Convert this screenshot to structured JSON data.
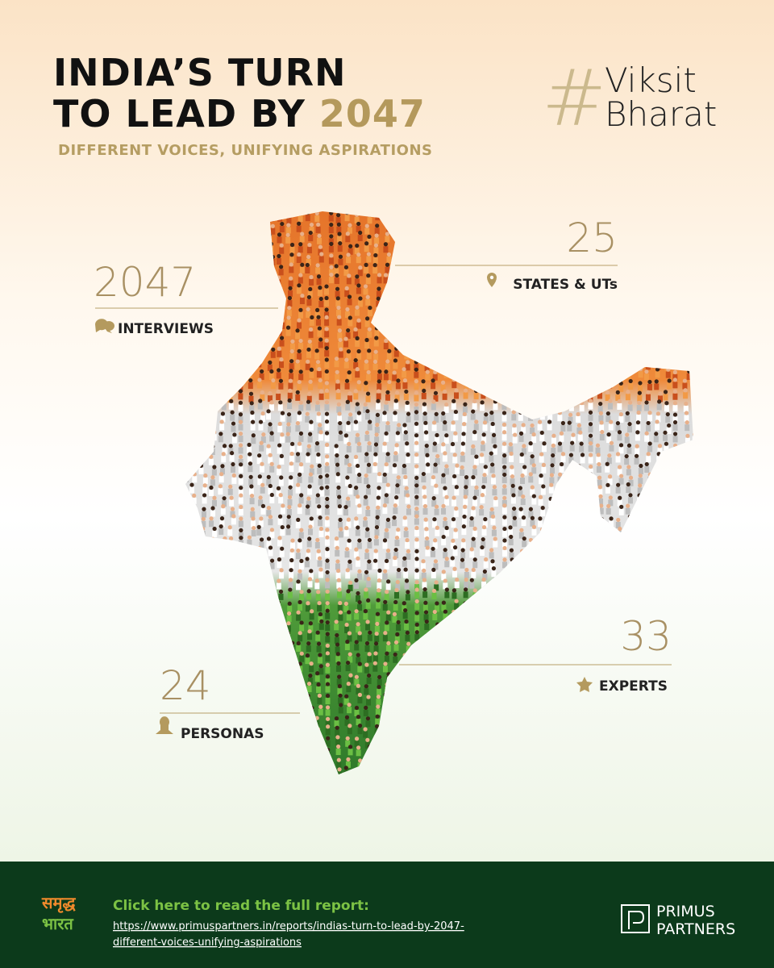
{
  "header": {
    "title_lines": [
      "INDIA’S TURN",
      "TO LEAD BY"
    ],
    "title_year": "2047",
    "subtitle": "DIFFERENT VOICES, UNIFYING ASPIRATIONS",
    "hashtag": "#",
    "tag_lines": [
      "Viksit",
      "Bharat"
    ]
  },
  "stats": [
    {
      "value": 2047,
      "label": "INTERVIEWS"
    },
    {
      "value": 25,
      "label": "STATES & UTs"
    },
    {
      "value": 33,
      "label": "EXPERTS"
    },
    {
      "value": 24,
      "label": "PERSONAS"
    }
  ],
  "footer": {
    "logo_lines": [
      "समृद्ध",
      "भारत"
    ],
    "cta": "Click here to read the full report:",
    "url_lines": [
      "https://www.primuspartners.in/reports/indias-turn-to-lead-by-2047-",
      "different-voices-unifying-aspirations"
    ],
    "brand_lines": [
      "PRIMUS",
      "PARTNERS"
    ]
  }
}
